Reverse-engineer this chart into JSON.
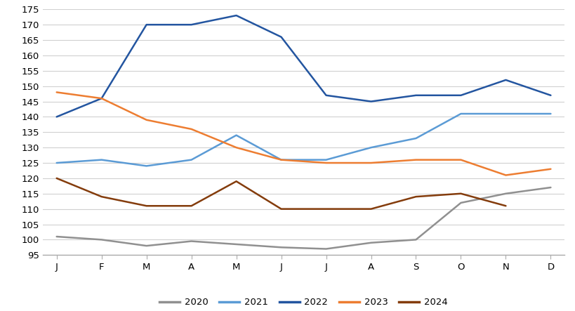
{
  "months": [
    "J",
    "F",
    "M",
    "A",
    "M",
    "J",
    "J",
    "A",
    "S",
    "O",
    "N",
    "D"
  ],
  "series": {
    "2020": [
      101,
      100,
      98,
      99.5,
      98.5,
      97.5,
      97,
      99,
      100,
      112,
      115,
      117
    ],
    "2021": [
      125,
      126,
      124,
      126,
      134,
      126,
      126,
      130,
      133,
      141,
      141,
      141
    ],
    "2022": [
      140,
      146,
      170,
      170,
      173,
      166,
      147,
      145,
      147,
      147,
      152,
      147
    ],
    "2023": [
      148,
      146,
      139,
      136,
      130,
      126,
      125,
      125,
      126,
      126,
      121,
      123
    ],
    "2024": [
      120,
      114,
      111,
      111,
      119,
      110,
      110,
      110,
      114,
      115,
      111,
      null
    ]
  },
  "colors": {
    "2020": "#909090",
    "2021": "#5B9BD5",
    "2022": "#2355A0",
    "2023": "#ED7D31",
    "2024": "#843C0C"
  },
  "ylim": [
    95,
    175
  ],
  "yticks": [
    95,
    100,
    105,
    110,
    115,
    120,
    125,
    130,
    135,
    140,
    145,
    150,
    155,
    160,
    165,
    170,
    175
  ],
  "legend_labels": [
    "2020",
    "2021",
    "2022",
    "2023",
    "2024"
  ],
  "background_color": "#ffffff",
  "grid_color": "#d0d0d0",
  "linewidth": 1.8,
  "tick_fontsize": 9.5,
  "legend_fontsize": 9.5
}
